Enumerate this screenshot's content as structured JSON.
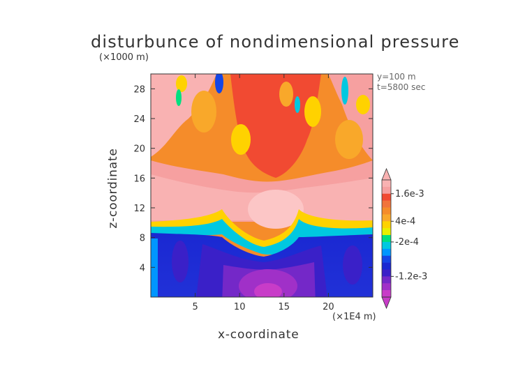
{
  "chart_data": {
    "type": "heatmap",
    "title": "disturbunce of nondimensional pressure",
    "xlabel": "x-coordinate",
    "ylabel": "z-coordinate",
    "x_unit": "(×1E4 m)",
    "y_unit": "(×1000 m)",
    "annotations": [
      "y=100 m",
      "t=5800 sec"
    ],
    "xlim": [
      0,
      25
    ],
    "ylim": [
      0,
      30
    ],
    "x_ticks": [
      5,
      10,
      15,
      20
    ],
    "x_tick_labels": [
      "5",
      "10",
      "15",
      "20"
    ],
    "y_ticks": [
      4,
      8,
      12,
      16,
      20,
      24,
      28
    ],
    "y_tick_labels": [
      "4",
      "8",
      "12",
      "16",
      "20",
      "24",
      "28"
    ],
    "colorbar": {
      "orientation": "vertical",
      "extend": "both",
      "labels": [
        "1.6e-3",
        "4e-4",
        "-2e-4",
        "-1.2e-3"
      ],
      "colors_top_to_bottom": [
        "#f9b2b2",
        "#f6a0a0",
        "#f14a32",
        "#f1743c",
        "#f58c2a",
        "#f9a82a",
        "#ffd200",
        "#e8f000",
        "#00e080",
        "#00c8e0",
        "#0096ff",
        "#1446e6",
        "#1a28d2",
        "#3a20c8",
        "#7428c8",
        "#a030c8",
        "#c83cc8"
      ],
      "colors": {
        "very_high": "#f9b2b2",
        "high": "#f6a0a0",
        "red": "#f14a32",
        "orange": "#f1743c",
        "orange2": "#f58c2a",
        "amber": "#f9a82a",
        "yellow": "#ffd200",
        "green": "#00e080",
        "cyan": "#00c8e0",
        "blue": "#1446e6",
        "navy": "#1a28d2",
        "purple": "#7428c8",
        "magenta": "#c83cc8"
      }
    },
    "regions": [
      {
        "description": "lower troposphere, strongly negative",
        "z_range": [
          0,
          9.5
        ],
        "level": "blue to purple/magenta"
      },
      {
        "description": "transition band",
        "z_range": [
          9.5,
          11
        ],
        "level": "green/yellow/orange"
      },
      {
        "description": "mid layer, strongly positive",
        "z_range": [
          11,
          17
        ],
        "level": "pink"
      },
      {
        "description": "upper layer, mixed positive",
        "z_range": [
          17,
          30
        ],
        "level": "orange/red with blue columns near x=7.5, 16 and 22"
      }
    ]
  }
}
